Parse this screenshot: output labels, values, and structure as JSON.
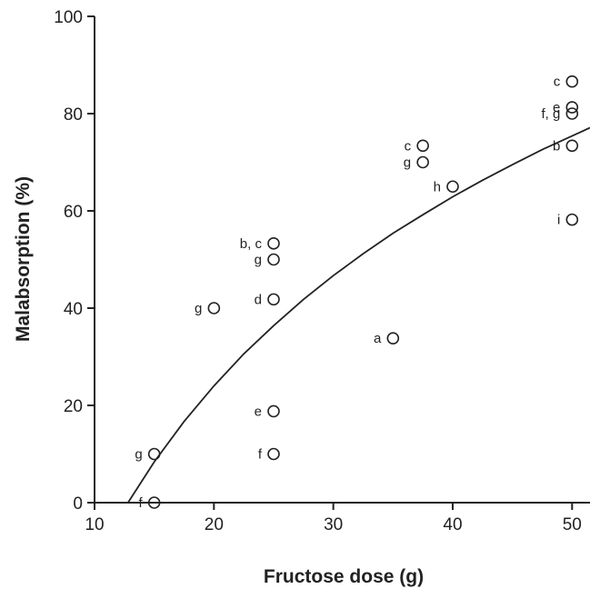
{
  "chart_data": {
    "type": "scatter",
    "title": "",
    "xlabel": "Fructose dose (g)",
    "ylabel": "Malabsorption (%)",
    "xlim": [
      10,
      51.5
    ],
    "ylim": [
      0,
      100
    ],
    "x_ticks": [
      10,
      20,
      30,
      40,
      50
    ],
    "y_ticks": [
      0,
      20,
      40,
      60,
      80,
      100
    ],
    "grid": false,
    "legend": "none",
    "colors": {
      "ink": "#222222",
      "background": "#ffffff"
    },
    "points": [
      {
        "x": 15,
        "y": 0,
        "label": "f"
      },
      {
        "x": 15,
        "y": 10,
        "label": "g"
      },
      {
        "x": 20,
        "y": 40,
        "label": "g"
      },
      {
        "x": 25,
        "y": 10,
        "label": "f"
      },
      {
        "x": 25,
        "y": 18.8,
        "label": "e"
      },
      {
        "x": 25,
        "y": 41.8,
        "label": "d"
      },
      {
        "x": 25,
        "y": 50,
        "label": "g"
      },
      {
        "x": 25,
        "y": 53.3,
        "label": "b, c"
      },
      {
        "x": 35,
        "y": 33.8,
        "label": "a"
      },
      {
        "x": 37.5,
        "y": 70,
        "label": "g"
      },
      {
        "x": 37.5,
        "y": 73.4,
        "label": "c"
      },
      {
        "x": 40,
        "y": 65,
        "label": "h"
      },
      {
        "x": 50,
        "y": 58.2,
        "label": "i"
      },
      {
        "x": 50,
        "y": 73.4,
        "label": "b"
      },
      {
        "x": 50,
        "y": 80,
        "label": "f, g"
      },
      {
        "x": 50,
        "y": 81.3,
        "label": "e"
      },
      {
        "x": 50,
        "y": 86.6,
        "label": "c"
      }
    ],
    "fit_curve": {
      "type": "logarithmic",
      "x": [
        12.8,
        15,
        17.5,
        20,
        22.5,
        25,
        27.5,
        30,
        32.5,
        35,
        37.5,
        40,
        42.5,
        45,
        47.5,
        50,
        51.5
      ],
      "y": [
        0,
        8.4,
        16.7,
        24.0,
        30.6,
        36.4,
        41.8,
        46.7,
        51.2,
        55.4,
        59.2,
        62.9,
        66.3,
        69.5,
        72.6,
        75.4,
        77.1
      ]
    }
  }
}
